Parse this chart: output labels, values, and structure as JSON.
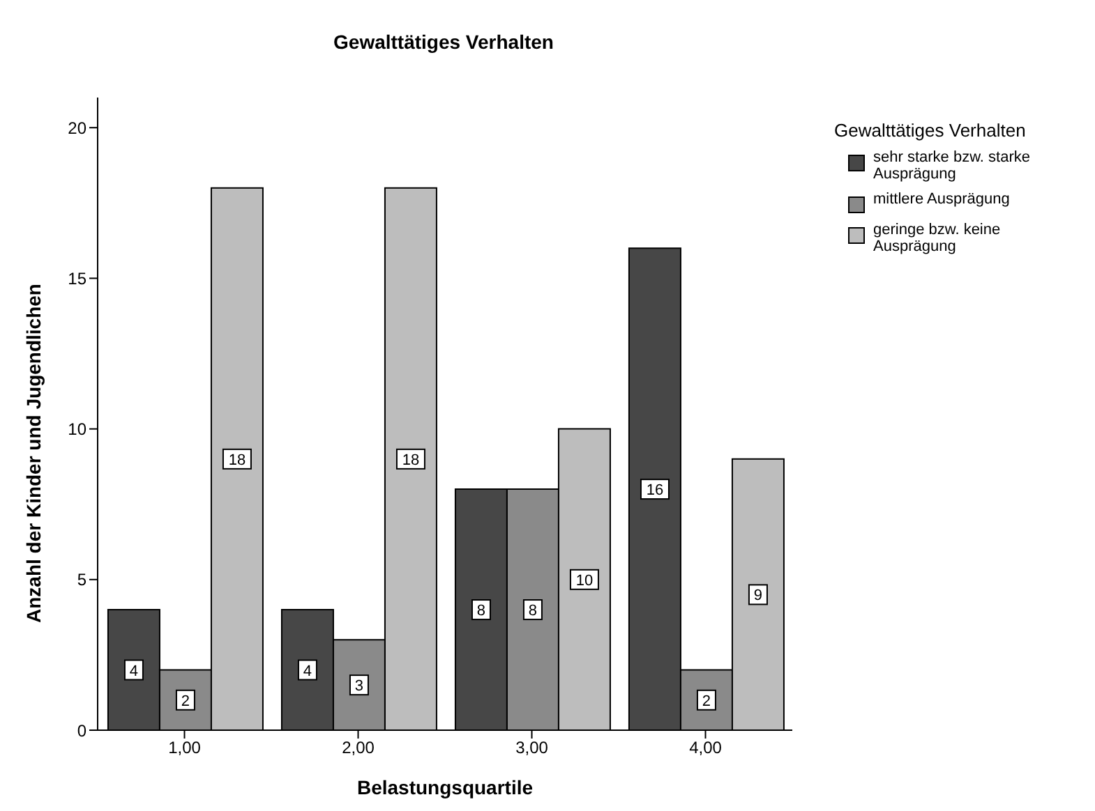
{
  "chart_data": {
    "type": "bar",
    "title": "Gewalttätiges Verhalten",
    "xlabel": "Belastungsquartile",
    "ylabel": "Anzahl der Kinder und Jugendlichen",
    "legend_title": "Gewalttätiges Verhalten",
    "legend": "right",
    "categories": [
      "1,00",
      "2,00",
      "3,00",
      "4,00"
    ],
    "series": [
      {
        "name": "sehr starke bzw. starke Ausprägung",
        "color": "#474747",
        "values": [
          4,
          4,
          8,
          16
        ]
      },
      {
        "name": "mittlere Ausprägung",
        "color": "#8a8a8a",
        "values": [
          2,
          3,
          8,
          2
        ]
      },
      {
        "name": "geringe bzw. keine Ausprägung",
        "color": "#bdbdbd",
        "values": [
          18,
          18,
          10,
          9
        ]
      }
    ],
    "ylim": [
      0,
      21
    ],
    "yticks": [
      0,
      5,
      10,
      15,
      20
    ],
    "data_labels": true,
    "grid": false
  }
}
